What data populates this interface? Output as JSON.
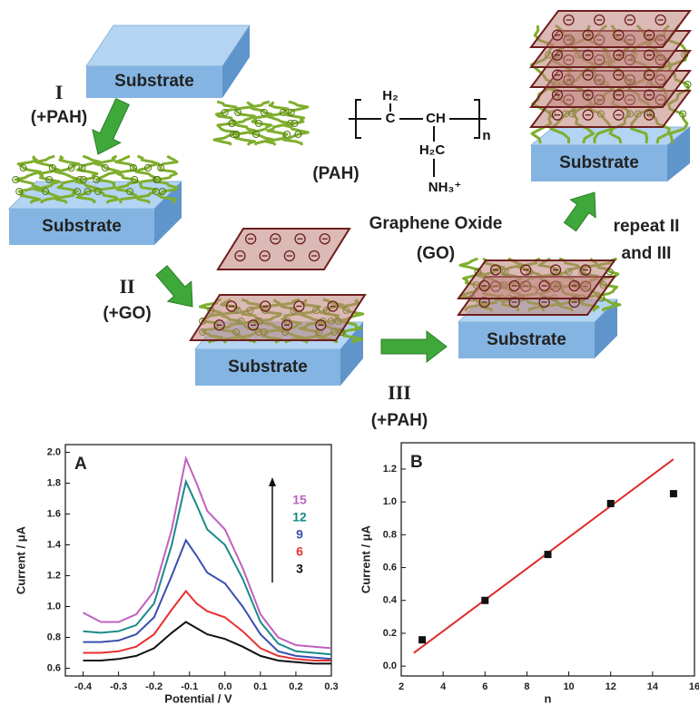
{
  "schematic": {
    "substrate_label": "Substrate",
    "step1": "I",
    "step1_agent": "(+PAH)",
    "step2": "II",
    "step2_agent": "(+GO)",
    "step3": "III",
    "step3_agent": "(+PAH)",
    "pah_label": "(PAH)",
    "go_label": "Graphene Oxide",
    "go_abbr": "(GO)",
    "repeat_line1": "repeat II",
    "repeat_line2": "and III",
    "formula": {
      "top": "H₂",
      "c1": "C",
      "c2": "CH",
      "n": "n",
      "side": "H₂C",
      "amine": "NH₃⁺"
    }
  },
  "chart_data": [
    {
      "type": "line",
      "title": "A",
      "x_label": "Potential / V",
      "y_label": "Current / μA",
      "x": [
        -0.4,
        -0.35,
        -0.3,
        -0.25,
        -0.2,
        -0.15,
        -0.11,
        -0.08,
        -0.05,
        0,
        0.05,
        0.1,
        0.15,
        0.2,
        0.25,
        0.3
      ],
      "series": [
        {
          "name": "15",
          "color": "#c060c0",
          "values": [
            0.96,
            0.9,
            0.9,
            0.95,
            1.1,
            1.5,
            1.96,
            1.8,
            1.62,
            1.5,
            1.25,
            0.95,
            0.8,
            0.75,
            0.74,
            0.73
          ]
        },
        {
          "name": "12",
          "color": "#1a8a8a",
          "values": [
            0.84,
            0.83,
            0.84,
            0.88,
            1.02,
            1.4,
            1.81,
            1.66,
            1.5,
            1.4,
            1.18,
            0.9,
            0.76,
            0.71,
            0.7,
            0.69
          ]
        },
        {
          "name": "9",
          "color": "#3a4fb0",
          "values": [
            0.77,
            0.77,
            0.78,
            0.82,
            0.93,
            1.2,
            1.43,
            1.33,
            1.22,
            1.15,
            1.0,
            0.82,
            0.71,
            0.68,
            0.67,
            0.66
          ]
        },
        {
          "name": "6",
          "color": "#e83030",
          "values": [
            0.7,
            0.7,
            0.71,
            0.74,
            0.82,
            0.98,
            1.1,
            1.02,
            0.97,
            0.93,
            0.84,
            0.73,
            0.68,
            0.66,
            0.65,
            0.65
          ]
        },
        {
          "name": "3",
          "color": "#111111",
          "values": [
            0.65,
            0.65,
            0.66,
            0.68,
            0.73,
            0.83,
            0.9,
            0.86,
            0.82,
            0.79,
            0.74,
            0.68,
            0.65,
            0.64,
            0.63,
            0.63
          ]
        }
      ],
      "xlim": [
        -0.45,
        0.3
      ],
      "ylim": [
        0.55,
        2.05
      ],
      "xticks": [
        -0.4,
        -0.3,
        -0.2,
        -0.1,
        {
          "value": 0,
          "label": "0.0"
        },
        0.1,
        0.2,
        0.3
      ],
      "yticks": [
        0.6,
        0.8,
        {
          "value": 1,
          "label": "1.0"
        },
        1.2,
        1.4,
        1.6,
        1.8,
        {
          "value": 2,
          "label": "2.0"
        }
      ]
    },
    {
      "type": "scatter",
      "title": "B",
      "x_label": "n",
      "y_label": "Current / μA",
      "x": [
        3,
        6,
        9,
        12,
        15
      ],
      "values": [
        0.16,
        0.4,
        0.68,
        0.99,
        1.05
      ],
      "color": "#111111",
      "fit": {
        "x": [
          2.6,
          15
        ],
        "values": [
          0.08,
          1.26
        ],
        "color": "#e02a2a"
      },
      "xlim": [
        2,
        16
      ],
      "ylim": [
        -0.06,
        1.36
      ],
      "xticks": [
        2,
        4,
        6,
        8,
        10,
        12,
        14,
        16
      ],
      "yticks": [
        {
          "value": 0,
          "label": "0.0"
        },
        0.2,
        0.4,
        0.6,
        0.8,
        {
          "value": 1,
          "label": "1.0"
        },
        1.2
      ]
    }
  ]
}
